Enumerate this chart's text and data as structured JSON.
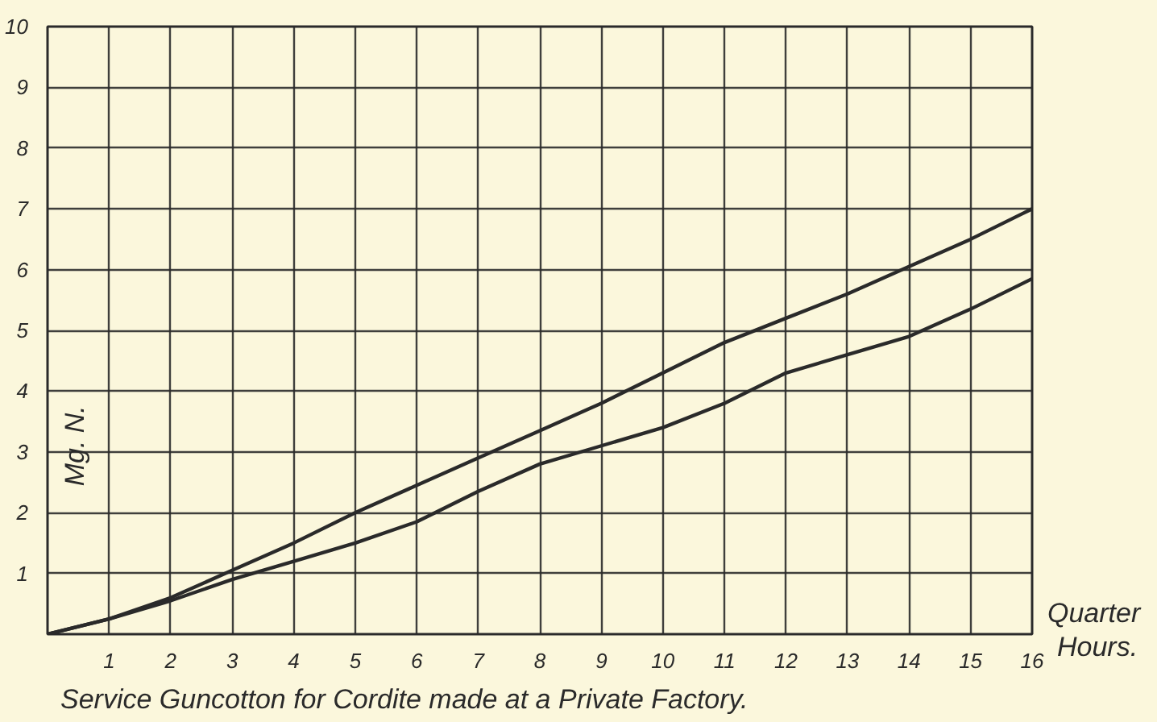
{
  "chart_data": {
    "type": "line",
    "xlabel": "Quarter Hours.",
    "ylabel": "Mg. N.",
    "annotations": [
      "Service Guncotton for Cordite made at a Private Factory."
    ],
    "x": [
      0,
      1,
      2,
      3,
      4,
      5,
      6,
      7,
      8,
      9,
      10,
      11,
      12,
      13,
      14,
      15,
      16
    ],
    "series": [
      {
        "color": "#2a2a2a",
        "values": [
          0,
          0.25,
          0.6,
          1.05,
          1.5,
          2.0,
          2.45,
          2.9,
          3.35,
          3.8,
          4.3,
          4.8,
          5.2,
          5.6,
          6.05,
          6.5,
          7.0
        ]
      },
      {
        "color": "#2a2a2a",
        "values": [
          0,
          0.25,
          0.55,
          0.9,
          1.2,
          1.5,
          1.85,
          2.35,
          2.8,
          3.1,
          3.4,
          3.8,
          4.3,
          4.6,
          4.9,
          5.35,
          5.85
        ]
      }
    ],
    "xlim": [
      0,
      16
    ],
    "ylim": [
      0,
      10
    ],
    "xticks": [
      1,
      2,
      3,
      4,
      5,
      6,
      7,
      8,
      9,
      10,
      11,
      12,
      13,
      14,
      15,
      16
    ],
    "yticks": [
      1,
      2,
      3,
      4,
      5,
      6,
      7,
      8,
      9,
      10
    ],
    "grid": true,
    "marker": "none",
    "line_style": "solid"
  }
}
